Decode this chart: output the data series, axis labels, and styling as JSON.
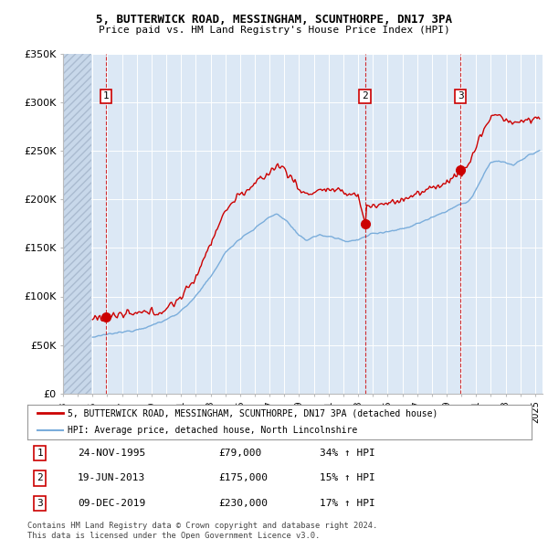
{
  "title1": "5, BUTTERWICK ROAD, MESSINGHAM, SCUNTHORPE, DN17 3PA",
  "title2": "Price paid vs. HM Land Registry's House Price Index (HPI)",
  "ylim": [
    0,
    350000
  ],
  "yticks": [
    0,
    50000,
    100000,
    150000,
    200000,
    250000,
    300000,
    350000
  ],
  "ytick_labels": [
    "£0",
    "£50K",
    "£100K",
    "£150K",
    "£200K",
    "£250K",
    "£300K",
    "£350K"
  ],
  "xlim_start": 1993.0,
  "xlim_end": 2025.5,
  "hatch_end": 1994.9,
  "sale_color": "#cc0000",
  "hpi_color": "#7aaddb",
  "sales": [
    {
      "date_num": 1995.9,
      "price": 79000,
      "label": "1"
    },
    {
      "date_num": 2013.46,
      "price": 175000,
      "label": "2"
    },
    {
      "date_num": 2019.94,
      "price": 230000,
      "label": "3"
    }
  ],
  "sale_info": [
    {
      "num": "1",
      "date": "24-NOV-1995",
      "price": "£79,000",
      "change": "34% ↑ HPI"
    },
    {
      "num": "2",
      "date": "19-JUN-2013",
      "price": "£175,000",
      "change": "15% ↑ HPI"
    },
    {
      "num": "3",
      "date": "09-DEC-2019",
      "price": "£230,000",
      "change": "17% ↑ HPI"
    }
  ],
  "legend_entries": [
    "5, BUTTERWICK ROAD, MESSINGHAM, SCUNTHORPE, DN17 3PA (detached house)",
    "HPI: Average price, detached house, North Lincolnshire"
  ],
  "footer": "Contains HM Land Registry data © Crown copyright and database right 2024.\nThis data is licensed under the Open Government Licence v3.0.",
  "plot_bg_color": "#dce8f5",
  "hatch_color": "#c8d8ea"
}
